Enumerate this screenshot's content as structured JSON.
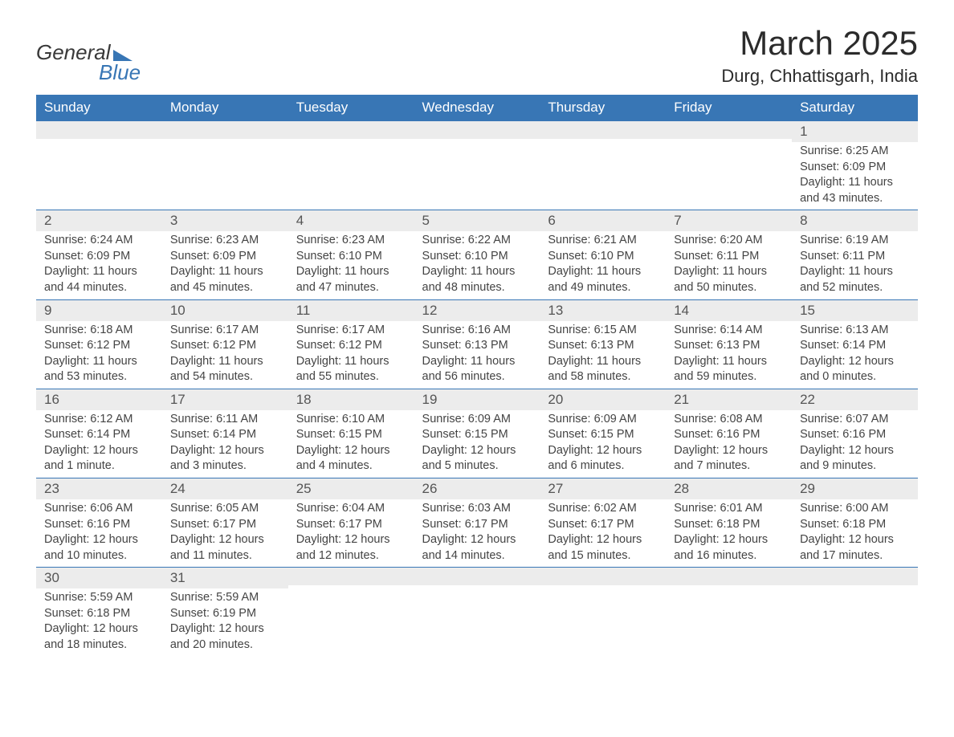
{
  "logo": {
    "word1": "General",
    "word2": "Blue"
  },
  "title": "March 2025",
  "location": "Durg, Chhattisgarh, India",
  "colors": {
    "header_bg": "#3876b5",
    "header_text": "#ffffff",
    "daynum_bg": "#ececec",
    "border": "#3876b5",
    "body_text": "#444444"
  },
  "day_headers": [
    "Sunday",
    "Monday",
    "Tuesday",
    "Wednesday",
    "Thursday",
    "Friday",
    "Saturday"
  ],
  "weeks": [
    [
      {
        "n": "",
        "sr": "",
        "ss": "",
        "dl": ""
      },
      {
        "n": "",
        "sr": "",
        "ss": "",
        "dl": ""
      },
      {
        "n": "",
        "sr": "",
        "ss": "",
        "dl": ""
      },
      {
        "n": "",
        "sr": "",
        "ss": "",
        "dl": ""
      },
      {
        "n": "",
        "sr": "",
        "ss": "",
        "dl": ""
      },
      {
        "n": "",
        "sr": "",
        "ss": "",
        "dl": ""
      },
      {
        "n": "1",
        "sr": "Sunrise: 6:25 AM",
        "ss": "Sunset: 6:09 PM",
        "dl": "Daylight: 11 hours and 43 minutes."
      }
    ],
    [
      {
        "n": "2",
        "sr": "Sunrise: 6:24 AM",
        "ss": "Sunset: 6:09 PM",
        "dl": "Daylight: 11 hours and 44 minutes."
      },
      {
        "n": "3",
        "sr": "Sunrise: 6:23 AM",
        "ss": "Sunset: 6:09 PM",
        "dl": "Daylight: 11 hours and 45 minutes."
      },
      {
        "n": "4",
        "sr": "Sunrise: 6:23 AM",
        "ss": "Sunset: 6:10 PM",
        "dl": "Daylight: 11 hours and 47 minutes."
      },
      {
        "n": "5",
        "sr": "Sunrise: 6:22 AM",
        "ss": "Sunset: 6:10 PM",
        "dl": "Daylight: 11 hours and 48 minutes."
      },
      {
        "n": "6",
        "sr": "Sunrise: 6:21 AM",
        "ss": "Sunset: 6:10 PM",
        "dl": "Daylight: 11 hours and 49 minutes."
      },
      {
        "n": "7",
        "sr": "Sunrise: 6:20 AM",
        "ss": "Sunset: 6:11 PM",
        "dl": "Daylight: 11 hours and 50 minutes."
      },
      {
        "n": "8",
        "sr": "Sunrise: 6:19 AM",
        "ss": "Sunset: 6:11 PM",
        "dl": "Daylight: 11 hours and 52 minutes."
      }
    ],
    [
      {
        "n": "9",
        "sr": "Sunrise: 6:18 AM",
        "ss": "Sunset: 6:12 PM",
        "dl": "Daylight: 11 hours and 53 minutes."
      },
      {
        "n": "10",
        "sr": "Sunrise: 6:17 AM",
        "ss": "Sunset: 6:12 PM",
        "dl": "Daylight: 11 hours and 54 minutes."
      },
      {
        "n": "11",
        "sr": "Sunrise: 6:17 AM",
        "ss": "Sunset: 6:12 PM",
        "dl": "Daylight: 11 hours and 55 minutes."
      },
      {
        "n": "12",
        "sr": "Sunrise: 6:16 AM",
        "ss": "Sunset: 6:13 PM",
        "dl": "Daylight: 11 hours and 56 minutes."
      },
      {
        "n": "13",
        "sr": "Sunrise: 6:15 AM",
        "ss": "Sunset: 6:13 PM",
        "dl": "Daylight: 11 hours and 58 minutes."
      },
      {
        "n": "14",
        "sr": "Sunrise: 6:14 AM",
        "ss": "Sunset: 6:13 PM",
        "dl": "Daylight: 11 hours and 59 minutes."
      },
      {
        "n": "15",
        "sr": "Sunrise: 6:13 AM",
        "ss": "Sunset: 6:14 PM",
        "dl": "Daylight: 12 hours and 0 minutes."
      }
    ],
    [
      {
        "n": "16",
        "sr": "Sunrise: 6:12 AM",
        "ss": "Sunset: 6:14 PM",
        "dl": "Daylight: 12 hours and 1 minute."
      },
      {
        "n": "17",
        "sr": "Sunrise: 6:11 AM",
        "ss": "Sunset: 6:14 PM",
        "dl": "Daylight: 12 hours and 3 minutes."
      },
      {
        "n": "18",
        "sr": "Sunrise: 6:10 AM",
        "ss": "Sunset: 6:15 PM",
        "dl": "Daylight: 12 hours and 4 minutes."
      },
      {
        "n": "19",
        "sr": "Sunrise: 6:09 AM",
        "ss": "Sunset: 6:15 PM",
        "dl": "Daylight: 12 hours and 5 minutes."
      },
      {
        "n": "20",
        "sr": "Sunrise: 6:09 AM",
        "ss": "Sunset: 6:15 PM",
        "dl": "Daylight: 12 hours and 6 minutes."
      },
      {
        "n": "21",
        "sr": "Sunrise: 6:08 AM",
        "ss": "Sunset: 6:16 PM",
        "dl": "Daylight: 12 hours and 7 minutes."
      },
      {
        "n": "22",
        "sr": "Sunrise: 6:07 AM",
        "ss": "Sunset: 6:16 PM",
        "dl": "Daylight: 12 hours and 9 minutes."
      }
    ],
    [
      {
        "n": "23",
        "sr": "Sunrise: 6:06 AM",
        "ss": "Sunset: 6:16 PM",
        "dl": "Daylight: 12 hours and 10 minutes."
      },
      {
        "n": "24",
        "sr": "Sunrise: 6:05 AM",
        "ss": "Sunset: 6:17 PM",
        "dl": "Daylight: 12 hours and 11 minutes."
      },
      {
        "n": "25",
        "sr": "Sunrise: 6:04 AM",
        "ss": "Sunset: 6:17 PM",
        "dl": "Daylight: 12 hours and 12 minutes."
      },
      {
        "n": "26",
        "sr": "Sunrise: 6:03 AM",
        "ss": "Sunset: 6:17 PM",
        "dl": "Daylight: 12 hours and 14 minutes."
      },
      {
        "n": "27",
        "sr": "Sunrise: 6:02 AM",
        "ss": "Sunset: 6:17 PM",
        "dl": "Daylight: 12 hours and 15 minutes."
      },
      {
        "n": "28",
        "sr": "Sunrise: 6:01 AM",
        "ss": "Sunset: 6:18 PM",
        "dl": "Daylight: 12 hours and 16 minutes."
      },
      {
        "n": "29",
        "sr": "Sunrise: 6:00 AM",
        "ss": "Sunset: 6:18 PM",
        "dl": "Daylight: 12 hours and 17 minutes."
      }
    ],
    [
      {
        "n": "30",
        "sr": "Sunrise: 5:59 AM",
        "ss": "Sunset: 6:18 PM",
        "dl": "Daylight: 12 hours and 18 minutes."
      },
      {
        "n": "31",
        "sr": "Sunrise: 5:59 AM",
        "ss": "Sunset: 6:19 PM",
        "dl": "Daylight: 12 hours and 20 minutes."
      },
      {
        "n": "",
        "sr": "",
        "ss": "",
        "dl": ""
      },
      {
        "n": "",
        "sr": "",
        "ss": "",
        "dl": ""
      },
      {
        "n": "",
        "sr": "",
        "ss": "",
        "dl": ""
      },
      {
        "n": "",
        "sr": "",
        "ss": "",
        "dl": ""
      },
      {
        "n": "",
        "sr": "",
        "ss": "",
        "dl": ""
      }
    ]
  ]
}
